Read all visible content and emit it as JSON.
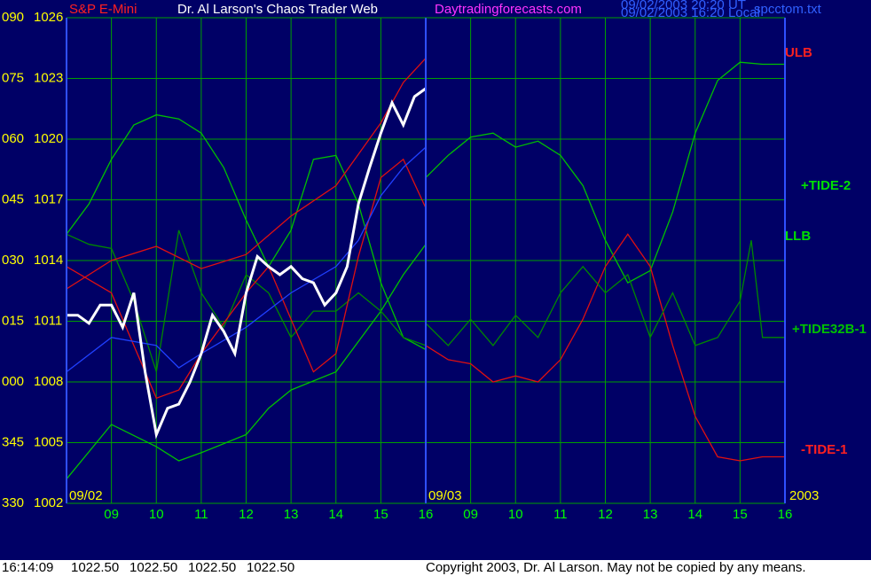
{
  "header": {
    "instrument": "S&P E-Mini",
    "site_title": "Dr. Al Larson's Chaos Trader Web",
    "site_url": "Daytradingforecasts.com",
    "stamp_ut": "09/02/2003 20:20 UT",
    "stamp_local": "09/02/2003 16:20 Local",
    "file": "spcctom.txt"
  },
  "footer": {
    "time": "16:14:09",
    "quote": [
      "1022.50",
      "1022.50",
      "1022.50",
      "1022.50"
    ],
    "copyright": "Copyright 2003, Dr. Al Larson. May not be copied by any means."
  },
  "chart_data": [
    {
      "type": "line",
      "day_label": "09/02",
      "xlim": [
        8,
        16
      ],
      "xticks": [
        {
          "value": 9,
          "label": "09"
        },
        10,
        11,
        12,
        13,
        14,
        15,
        16
      ],
      "ylim": [
        1002,
        1026
      ],
      "yticks": [
        1026,
        1023,
        1020,
        1017,
        1014,
        1011,
        1008,
        1005,
        1002
      ],
      "angle_labels": [
        "090",
        "075",
        "060",
        "045",
        "030",
        "015",
        "000",
        "345",
        "330"
      ],
      "grid": true,
      "series": [
        {
          "color": "#00c000",
          "x": [
            8,
            8.5,
            9,
            9.5,
            10,
            10.5,
            11,
            11.5,
            12,
            12.5,
            13,
            13.5,
            14,
            14.5,
            15,
            15.5,
            16
          ],
          "values": [
            1015.3,
            1016.8,
            1019.0,
            1020.7,
            1021.2,
            1021.0,
            1020.3,
            1018.6,
            1016.0,
            1013.7,
            1015.5,
            1019.0,
            1019.2,
            1016.8,
            1012.9,
            1010.2,
            1009.6
          ]
        },
        {
          "color": "#00c000",
          "x": [
            8,
            9,
            10,
            10.5,
            11,
            12,
            12.5,
            13,
            14,
            15,
            15.5,
            16
          ],
          "values": [
            1003.2,
            1005.9,
            1004.8,
            1004.1,
            1004.5,
            1005.4,
            1006.7,
            1007.6,
            1008.5,
            1011.5,
            1013.3,
            1014.8
          ]
        },
        {
          "color": "#008800",
          "x": [
            8,
            8.5,
            9,
            9.5,
            10,
            10.5,
            11,
            11.5,
            12,
            12.5,
            13,
            13.5,
            14,
            14.5,
            15,
            15.5,
            16
          ],
          "values": [
            1015.3,
            1014.8,
            1014.6,
            1012.0,
            1008.5,
            1015.5,
            1012.4,
            1010.7,
            1013.3,
            1012.4,
            1010.2,
            1011.5,
            1011.5,
            1012.4,
            1011.5,
            1010.2,
            1009.8
          ]
        },
        {
          "color": "#e01010",
          "x": [
            8,
            9,
            10,
            11,
            12,
            13,
            14,
            15,
            15.5,
            16
          ],
          "values": [
            1012.6,
            1014.0,
            1014.7,
            1013.6,
            1014.3,
            1016.2,
            1017.7,
            1020.8,
            1022.8,
            1024.0
          ]
        },
        {
          "color": "#e01010",
          "x": [
            8,
            9,
            9.5,
            10,
            10.5,
            11,
            12,
            12.5,
            13,
            13.5,
            14,
            14.5,
            15,
            15.5,
            16
          ],
          "values": [
            1013.7,
            1012.4,
            1009.8,
            1007.2,
            1007.6,
            1009.4,
            1012.4,
            1013.7,
            1011.1,
            1008.5,
            1009.4,
            1014.2,
            1018.1,
            1019.0,
            1016.6
          ]
        },
        {
          "color": "#2040ff",
          "x": [
            8,
            9,
            10,
            10.5,
            11,
            12,
            13,
            14,
            14.5,
            15,
            15.5,
            16
          ],
          "values": [
            1008.5,
            1010.2,
            1009.8,
            1008.7,
            1009.4,
            1010.7,
            1012.4,
            1013.7,
            1015.0,
            1017.2,
            1018.6,
            1019.6
          ]
        },
        {
          "name": "S&P E-Mini",
          "color": "#ffffff",
          "x": [
            8,
            8.25,
            8.5,
            8.75,
            9,
            9.25,
            9.5,
            9.75,
            10,
            10.25,
            10.5,
            10.75,
            11,
            11.25,
            11.5,
            11.75,
            12,
            12.25,
            12.5,
            12.75,
            13,
            13.25,
            13.5,
            13.75,
            14,
            14.25,
            14.5,
            14.75,
            15,
            15.25,
            15.5,
            15.75,
            16
          ],
          "values": [
            1011.3,
            1011.3,
            1010.9,
            1011.8,
            1011.8,
            1010.7,
            1012.4,
            1008.5,
            1005.4,
            1006.7,
            1006.9,
            1008.0,
            1009.4,
            1011.3,
            1010.5,
            1009.4,
            1012.4,
            1014.2,
            1013.7,
            1013.3,
            1013.7,
            1013.1,
            1012.9,
            1011.8,
            1012.4,
            1013.7,
            1016.8,
            1018.6,
            1020.3,
            1021.8,
            1020.7,
            1022.1,
            1022.5
          ]
        }
      ]
    },
    {
      "type": "line",
      "day_label": "09/03",
      "year_label": "2003",
      "xlim": [
        8,
        16
      ],
      "xticks": [
        {
          "value": 9,
          "label": "09"
        },
        10,
        11,
        12,
        13,
        14,
        15,
        16
      ],
      "ylim": [
        1002,
        1026
      ],
      "grid": true,
      "annotations": [
        {
          "text": "ULB",
          "color": "#ff2020"
        },
        {
          "text": "+TIDE-2",
          "color": "#00e000"
        },
        {
          "text": "LLB",
          "color": "#00e000"
        },
        {
          "text": "+TIDE32B-1",
          "color": "#00c000"
        },
        {
          "text": "-TIDE-1",
          "color": "#ff2020"
        }
      ],
      "series": [
        {
          "color": "#00c000",
          "x": [
            8,
            8.5,
            9,
            9.5,
            10,
            10.5,
            11,
            11.5,
            12,
            12.5,
            13,
            13.5,
            14,
            14.5,
            15,
            15.5,
            16
          ],
          "values": [
            1018.1,
            1019.2,
            1020.1,
            1020.3,
            1019.6,
            1019.9,
            1019.2,
            1017.7,
            1015.0,
            1012.9,
            1013.5,
            1016.4,
            1020.3,
            1022.9,
            1023.8,
            1023.7,
            1023.7
          ]
        },
        {
          "color": "#e01010",
          "x": [
            8,
            8.5,
            9,
            9.5,
            10,
            10.5,
            11,
            11.5,
            12,
            12.5,
            13,
            13.5,
            14,
            14.5,
            15,
            15.5,
            16
          ],
          "values": [
            1009.8,
            1009.1,
            1008.9,
            1008.0,
            1008.3,
            1008.0,
            1009.1,
            1011.1,
            1013.7,
            1015.3,
            1013.7,
            1009.8,
            1006.3,
            1004.3,
            1004.1,
            1004.3,
            1004.3
          ]
        },
        {
          "color": "#008800",
          "x": [
            8,
            8.5,
            9,
            9.5,
            10,
            10.5,
            11,
            11.5,
            12,
            12.5,
            13,
            13.5,
            14,
            14.5,
            15,
            15.25,
            15.5,
            16
          ],
          "values": [
            1010.9,
            1009.8,
            1011.1,
            1009.8,
            1011.3,
            1010.2,
            1012.4,
            1013.7,
            1012.4,
            1013.3,
            1010.2,
            1012.4,
            1009.8,
            1010.2,
            1012.0,
            1015.0,
            1010.2,
            1010.2
          ]
        }
      ]
    }
  ]
}
